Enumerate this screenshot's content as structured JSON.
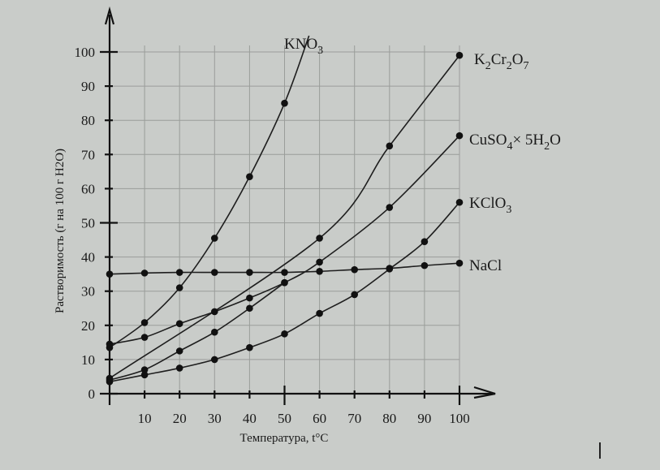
{
  "chart_data": {
    "type": "line",
    "xlabel": "Температура, t°C",
    "ylabel": "Растворимость (г на 100 г H2O)",
    "xlim": [
      0,
      100
    ],
    "ylim": [
      0,
      100
    ],
    "xticks": [
      10,
      20,
      30,
      40,
      50,
      60,
      70,
      80,
      90,
      100
    ],
    "yticks": [
      0,
      10,
      20,
      30,
      40,
      50,
      60,
      70,
      80,
      90,
      100
    ],
    "grid": true,
    "series": [
      {
        "name": "KNO3",
        "label_parts": [
          {
            "t": "KNO"
          },
          {
            "t": "3",
            "sub": true
          }
        ],
        "x": [
          0,
          10,
          20,
          30,
          40,
          50
        ],
        "y": [
          13.5,
          20.8,
          31,
          45.5,
          63.5,
          85
        ],
        "extend_to": [
          57,
          100
        ]
      },
      {
        "name": "K2Cr2O7",
        "label_parts": [
          {
            "t": "K"
          },
          {
            "t": "2",
            "sub": true
          },
          {
            "t": "Cr"
          },
          {
            "t": "2",
            "sub": true
          },
          {
            "t": "O"
          },
          {
            "t": "7",
            "sub": true
          }
        ],
        "x": [
          0,
          60,
          80,
          100
        ],
        "y": [
          4.5,
          45.5,
          72.5,
          99
        ]
      },
      {
        "name": "CuSO4×5H2O",
        "label_parts": [
          {
            "t": "CuSO"
          },
          {
            "t": "4",
            "sub": true
          },
          {
            "t": "× 5H"
          },
          {
            "t": "2",
            "sub": true
          },
          {
            "t": "O"
          }
        ],
        "x": [
          0,
          10,
          20,
          30,
          40,
          50,
          60,
          80,
          100
        ],
        "y": [
          14.5,
          16.5,
          20.5,
          24,
          28,
          32.5,
          38.5,
          54.5,
          75.5
        ]
      },
      {
        "name": "KClO3",
        "label_parts": [
          {
            "t": "KClO"
          },
          {
            "t": "3",
            "sub": true
          }
        ],
        "x": [
          0,
          10,
          20,
          30,
          40,
          50,
          60,
          70,
          80,
          90,
          100
        ],
        "y": [
          3.5,
          5.5,
          7.5,
          10,
          13.5,
          17.5,
          23.5,
          29,
          36.5,
          44.5,
          56
        ]
      },
      {
        "name": "NaCl",
        "label_parts": [
          {
            "t": "NaCl"
          }
        ],
        "x": [
          0,
          10,
          20,
          30,
          40,
          50,
          60,
          70,
          80,
          90,
          100
        ],
        "y": [
          35,
          35.3,
          35.5,
          35.5,
          35.5,
          35.5,
          35.8,
          36.3,
          36.7,
          37.5,
          38.2
        ]
      }
    ],
    "extra_lines": [
      {
        "name": "KClO3-early-branch",
        "x": [
          0,
          10,
          20,
          30,
          40,
          50
        ],
        "y": [
          4,
          7,
          12.5,
          18,
          25,
          32.5
        ]
      }
    ]
  }
}
